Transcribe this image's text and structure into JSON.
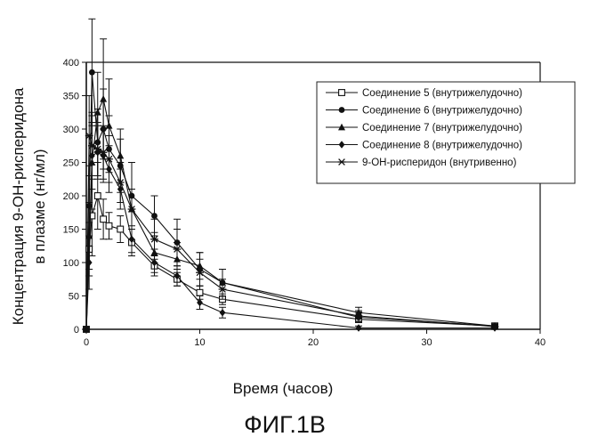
{
  "chart_data": {
    "type": "line",
    "xlabel": "Время (часов)",
    "ylabel_lines": [
      "Концентрация 9-ОН-рисперидона",
      "в плазме (нг/мл)"
    ],
    "caption": "ФИГ.1B",
    "xlim": [
      0,
      40
    ],
    "ylim": [
      0,
      400
    ],
    "x_ticks": [
      "0",
      "10",
      "20",
      "30",
      "40"
    ],
    "y_ticks": [
      "0",
      "50",
      "100",
      "150",
      "200",
      "250",
      "300",
      "350",
      "400"
    ],
    "grid": false,
    "legend_position": "top-right",
    "series": [
      {
        "name": "Соединение 5 (внутрижелудочно)",
        "marker": "open-square",
        "x": [
          0,
          0.25,
          0.5,
          1,
          1.5,
          2,
          3,
          4,
          6,
          8,
          10,
          12,
          24,
          36
        ],
        "y": [
          0,
          120,
          170,
          200,
          165,
          155,
          150,
          130,
          95,
          75,
          55,
          45,
          15,
          5
        ],
        "err": [
          0,
          40,
          60,
          50,
          30,
          20,
          20,
          20,
          15,
          10,
          10,
          8,
          5,
          2
        ]
      },
      {
        "name": "Соединение 6 (внутрижелудочно)",
        "marker": "filled-circle",
        "x": [
          0,
          0.25,
          0.5,
          1,
          1.5,
          2,
          3,
          4,
          6,
          8,
          10,
          12,
          24,
          36
        ],
        "y": [
          0,
          185,
          385,
          280,
          300,
          270,
          245,
          200,
          170,
          130,
          90,
          70,
          18,
          5
        ],
        "err": [
          0,
          60,
          80,
          50,
          60,
          50,
          40,
          50,
          30,
          35,
          25,
          20,
          8,
          3
        ]
      },
      {
        "name": "Соединение 7 (внутрижелудочно)",
        "marker": "filled-triangle",
        "x": [
          0,
          0.25,
          0.5,
          1,
          1.5,
          2,
          3,
          4,
          6,
          8,
          10,
          12,
          24,
          36
        ],
        "y": [
          0,
          140,
          250,
          325,
          345,
          305,
          260,
          180,
          115,
          105,
          95,
          70,
          25,
          5
        ],
        "err": [
          0,
          50,
          70,
          60,
          90,
          70,
          40,
          30,
          30,
          25,
          20,
          20,
          8,
          3
        ]
      },
      {
        "name": "Соединение 8 (внутрижелудочно)",
        "marker": "filled-diamond",
        "x": [
          0,
          0.25,
          0.5,
          1,
          1.5,
          2,
          3,
          4,
          6,
          8,
          10,
          12,
          24,
          36
        ],
        "y": [
          0,
          100,
          260,
          265,
          260,
          240,
          210,
          135,
          100,
          80,
          40,
          25,
          2,
          2
        ],
        "err": [
          0,
          40,
          50,
          40,
          40,
          35,
          30,
          20,
          20,
          15,
          10,
          8,
          3,
          2
        ]
      },
      {
        "name": "9-ОН-рисперидон (внутривенно)",
        "marker": "asterisk",
        "x": [
          0,
          0.25,
          0.5,
          1,
          1.5,
          2,
          3,
          4,
          6,
          8,
          10,
          12,
          24,
          36
        ],
        "y": [
          0,
          290,
          275,
          270,
          265,
          255,
          220,
          180,
          135,
          120,
          85,
          60,
          20,
          4
        ],
        "err": [
          0,
          60,
          50,
          40,
          40,
          35,
          30,
          30,
          30,
          30,
          20,
          15,
          8,
          3
        ]
      }
    ]
  }
}
